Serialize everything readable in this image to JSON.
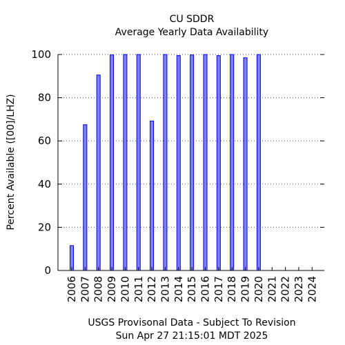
{
  "chart_data": {
    "type": "bar",
    "title": "CU SDDR",
    "subtitle": "Average Yearly Data Availability",
    "xlabel": "",
    "ylabel": "Percent Available ([00]/LHZ)",
    "ylim": [
      0,
      100
    ],
    "yticks": [
      "0",
      "20",
      "40",
      "60",
      "80",
      "100"
    ],
    "categories": [
      "2006",
      "2007",
      "2008",
      "2009",
      "2010",
      "2011",
      "2012",
      "2013",
      "2014",
      "2015",
      "2016",
      "2017",
      "2018",
      "2019",
      "2020",
      "2021",
      "2022",
      "2023",
      "2024"
    ],
    "values": [
      11.5,
      67.5,
      90.5,
      99.8,
      100,
      100,
      69.2,
      100,
      99.5,
      99.8,
      100,
      99.5,
      100,
      98.5,
      100,
      null,
      null,
      null,
      null
    ],
    "grid": "horizontal-dotted",
    "bar_color": "#7f7fff",
    "bar_edge_color": "#0000cc",
    "footer_line1": "USGS Provisonal Data - Subject To Revision",
    "footer_line2": "Sun Apr 27 21:15:01 MDT 2025"
  }
}
